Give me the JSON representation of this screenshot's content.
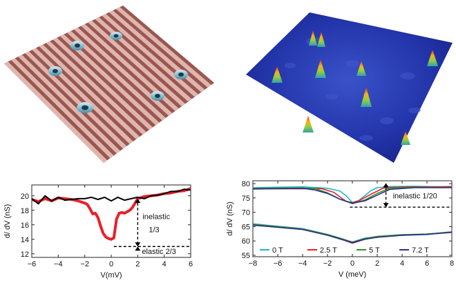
{
  "chart_data": [
    {
      "type": "line",
      "panel": "bottom-left",
      "xlabel": "V(mV)",
      "ylabel": "d/ dV (nS)",
      "xlim": [
        -6,
        6
      ],
      "ylim": [
        11.5,
        21.5
      ],
      "xticks": [
        -6,
        -4,
        -2,
        0,
        2,
        4,
        6
      ],
      "yticks": [
        12,
        14,
        16,
        18,
        20
      ],
      "grid": false,
      "series": [
        {
          "color": "#e8202a",
          "x": [
            -6,
            -5.5,
            -5,
            -4.5,
            -4,
            -3.5,
            -3,
            -2.5,
            -2,
            -1.8,
            -1.6,
            -1.4,
            -1.2,
            -1.0,
            -0.8,
            -0.6,
            -0.4,
            -0.2,
            0,
            0.2,
            0.4,
            0.6,
            0.8,
            1.0,
            1.2,
            1.4,
            1.6,
            1.8,
            2.0,
            2.5,
            3,
            3.5,
            4,
            4.5,
            5,
            5.5,
            6
          ],
          "y": [
            19.5,
            19.2,
            19.6,
            19.3,
            19.7,
            19.6,
            19.5,
            19.3,
            19.0,
            18.8,
            18.2,
            17.5,
            17.6,
            17.0,
            15.8,
            14.8,
            14.3,
            14.1,
            14.0,
            14.2,
            16.8,
            17.6,
            17.7,
            17.6,
            17.8,
            18.0,
            18.4,
            19.0,
            19.6,
            19.9,
            20.0,
            20.1,
            20.3,
            20.4,
            20.6,
            20.7,
            21.0
          ]
        },
        {
          "color": "#000000",
          "x": [
            -6,
            -5.5,
            -5,
            -4.5,
            -4,
            -3.5,
            -3,
            -2.5,
            -2,
            -1.5,
            -1,
            -0.5,
            0,
            0.5,
            1,
            1.5,
            2,
            2.5,
            3,
            3.5,
            4,
            4.5,
            5,
            5.5,
            6
          ],
          "y": [
            19.6,
            18.9,
            20.0,
            19.3,
            19.8,
            19.4,
            19.5,
            19.6,
            19.6,
            19.8,
            19.5,
            19.8,
            19.3,
            19.8,
            19.4,
            19.6,
            19.8,
            19.6,
            20.0,
            20.1,
            20.3,
            20.6,
            20.6,
            20.9,
            20.8
          ]
        }
      ],
      "annotations": [
        {
          "text": "inelastic",
          "line2": "1/3"
        },
        {
          "text": "elastic 2/3"
        }
      ],
      "guide": {
        "x": 2,
        "y_top": 19.6,
        "y_mid": 13.0,
        "y_dash": 13.0
      }
    },
    {
      "type": "line",
      "panel": "bottom-right",
      "xlabel": "V (meV)",
      "ylabel": "d/ dV (nS)",
      "xlim": [
        -8,
        8
      ],
      "ylim": [
        54.5,
        81
      ],
      "xticks": [
        -8,
        -6,
        -4,
        -2,
        0,
        2,
        4,
        6,
        8
      ],
      "yticks": [
        55,
        60,
        65,
        70,
        75,
        80
      ],
      "grid": false,
      "legend_position": "bottom",
      "series": [
        {
          "name": "0 T",
          "color": "#1fb8c4",
          "upper": [
            [
              -8,
              78.6
            ],
            [
              -4,
              78.9
            ],
            [
              -2,
              78.4
            ],
            [
              -1,
              77.4
            ],
            [
              -0.5,
              75.8
            ],
            [
              0,
              73.4
            ],
            [
              0.5,
              74.1
            ],
            [
              1,
              75.8
            ],
            [
              1.5,
              77.6
            ],
            [
              2,
              78.6
            ],
            [
              3,
              79.0
            ],
            [
              5,
              79.1
            ],
            [
              8,
              78.8
            ]
          ],
          "lower": [
            [
              -8,
              66.0
            ],
            [
              -4,
              64.3
            ],
            [
              -2,
              62.3
            ],
            [
              -1,
              61.0
            ],
            [
              0,
              59.6
            ],
            [
              1,
              61.0
            ],
            [
              2,
              61.5
            ],
            [
              4,
              62.0
            ],
            [
              6,
              62.2
            ],
            [
              8,
              63.2
            ]
          ]
        },
        {
          "name": "2.5 T",
          "color": "#e8202a",
          "upper": [
            [
              -8,
              78.2
            ],
            [
              -4,
              78.2
            ],
            [
              -2.5,
              78.3
            ],
            [
              -1.5,
              77.0
            ],
            [
              -0.5,
              73.8
            ],
            [
              0,
              73.4
            ],
            [
              0.5,
              74.0
            ],
            [
              1.5,
              76.3
            ],
            [
              2.5,
              78.5
            ],
            [
              4,
              78.8
            ],
            [
              8,
              79.0
            ]
          ],
          "lower": [
            [
              -8,
              65.6
            ],
            [
              -4,
              64.1
            ],
            [
              -2,
              62.0
            ],
            [
              -1,
              60.8
            ],
            [
              0,
              59.2
            ],
            [
              1,
              60.6
            ],
            [
              2,
              61.4
            ],
            [
              4,
              62.0
            ],
            [
              6,
              62.4
            ],
            [
              8,
              63.0
            ]
          ]
        },
        {
          "name": "5 T",
          "color": "#3a8a2a",
          "upper": [
            [
              -8,
              78.4
            ],
            [
              -4,
              78.5
            ],
            [
              -3,
              78.3
            ],
            [
              -2,
              76.8
            ],
            [
              -1,
              74.6
            ],
            [
              0,
              73.0
            ],
            [
              1,
              74.3
            ],
            [
              2,
              76.6
            ],
            [
              3,
              78.4
            ],
            [
              5,
              78.7
            ],
            [
              8,
              78.7
            ]
          ],
          "lower": [
            [
              -8,
              65.8
            ],
            [
              -4,
              64.2
            ],
            [
              -2,
              62.2
            ],
            [
              -1,
              61.0
            ],
            [
              0,
              59.6
            ],
            [
              1,
              60.8
            ],
            [
              2,
              61.6
            ],
            [
              4,
              62.2
            ],
            [
              6,
              62.4
            ],
            [
              8,
              63.2
            ]
          ]
        },
        {
          "name": "7.2 T",
          "color": "#2a2f8c",
          "upper": [
            [
              -8,
              78.1
            ],
            [
              -4,
              78.4
            ],
            [
              -3,
              77.8
            ],
            [
              -2,
              76.6
            ],
            [
              -1,
              74.6
            ],
            [
              0,
              73.2
            ],
            [
              1,
              74.0
            ],
            [
              2,
              76.0
            ],
            [
              3,
              78.0
            ],
            [
              5,
              78.6
            ],
            [
              8,
              78.6
            ]
          ],
          "lower": [
            [
              -8,
              65.5
            ],
            [
              -4,
              64.0
            ],
            [
              -2,
              62.0
            ],
            [
              -1,
              60.7
            ],
            [
              0,
              59.4
            ],
            [
              1,
              60.6
            ],
            [
              2,
              61.3
            ],
            [
              4,
              62.0
            ],
            [
              6,
              62.3
            ],
            [
              8,
              63.0
            ]
          ]
        }
      ],
      "annotations": [
        {
          "text": "inelastic 1/20"
        }
      ],
      "guide": {
        "x": 2.7,
        "y_top": 80.2,
        "y_bottom": 71.8,
        "y_dash": 71.8
      }
    }
  ]
}
